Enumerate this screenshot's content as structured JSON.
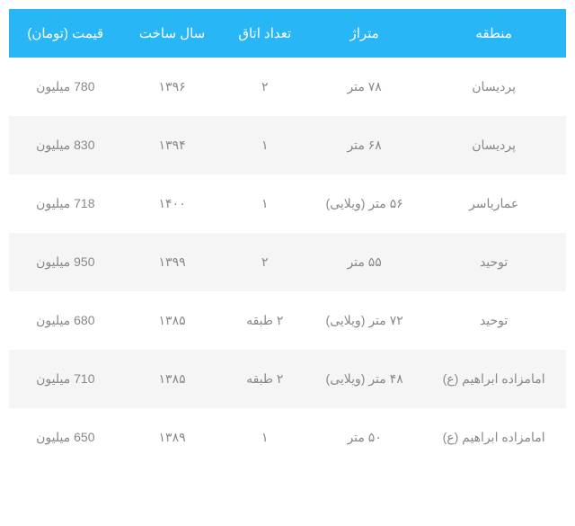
{
  "table": {
    "columns": [
      "منطقه",
      "متراژ",
      "تعداد اتاق",
      "سال ساخت",
      "قیمت (تومان)"
    ],
    "rows": [
      [
        "پردیسان",
        "۷۸ متر",
        "۲",
        "۱۳۹۶",
        "780 میلیون"
      ],
      [
        "پردیسان",
        "۶۸ متر",
        "۱",
        "۱۳۹۴",
        "830 میلیون"
      ],
      [
        "عماریاسر",
        "۵۶ متر (ویلایی)",
        "۱",
        "۱۴۰۰",
        "718 میلیون"
      ],
      [
        "توحید",
        "۵۵ متر",
        "۲",
        "۱۳۹۹",
        "950 میلیون"
      ],
      [
        "توحید",
        "۷۲ متر (ویلایی)",
        "۲ طبقه",
        "۱۳۸۵",
        "680 میلیون"
      ],
      [
        "امامزاده ابراهیم (ع)",
        "۴۸ متر (ویلایی)",
        "۲ طبقه",
        "۱۳۸۵",
        "710 میلیون"
      ],
      [
        "امامزاده ابراهیم (ع)",
        "۵۰ متر",
        "۱",
        "۱۳۸۹",
        "650 میلیون"
      ]
    ],
    "header_bg": "#29b6f6",
    "header_color": "#ffffff",
    "row_odd_bg": "#ffffff",
    "row_even_bg": "#f5f5f5",
    "text_color": "#888888"
  }
}
